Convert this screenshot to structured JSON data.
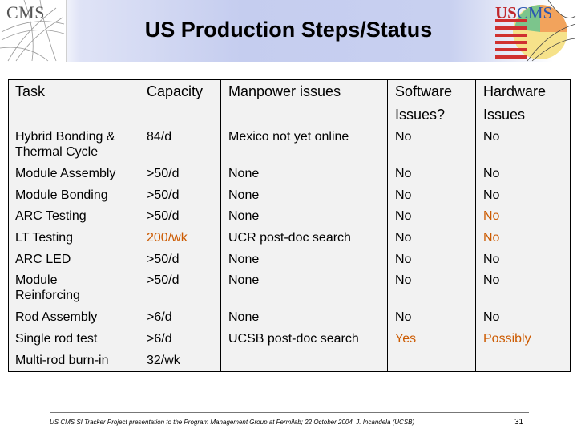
{
  "header": {
    "title": "US Production Steps/Status",
    "left_logo": "CMS",
    "right_logo_us": "US",
    "right_logo_cms": "CMS"
  },
  "table": {
    "columns": [
      "Task",
      "Capacity",
      "Manpower issues",
      "Software Issues?",
      "Hardware Issues"
    ],
    "column_lines": [
      [
        "Task"
      ],
      [
        "Capacity"
      ],
      [
        "Manpower issues"
      ],
      [
        "Software",
        "Issues?"
      ],
      [
        "Hardware",
        "Issues"
      ]
    ],
    "rows": [
      {
        "task": [
          "Hybrid Bonding &",
          "Thermal Cycle"
        ],
        "capacity": "84/d",
        "manpower": "Mexico not yet online",
        "software": "No",
        "hardware": "No"
      },
      {
        "task": [
          "Module Assembly"
        ],
        "capacity": ">50/d",
        "manpower": "None",
        "software": "No",
        "hardware": "No"
      },
      {
        "task": [
          "Module Bonding"
        ],
        "capacity": ">50/d",
        "manpower": "None",
        "software": "No",
        "hardware": "No"
      },
      {
        "task": [
          "ARC Testing"
        ],
        "capacity": ">50/d",
        "manpower": "None",
        "software": "No",
        "hardware": "No"
      },
      {
        "task": [
          "LT Testing"
        ],
        "capacity": "200/wk",
        "manpower": "UCR post-doc search",
        "software": "No",
        "hardware": "No"
      },
      {
        "task": [
          "ARC LED"
        ],
        "capacity": ">50/d",
        "manpower": "None",
        "software": "No",
        "hardware": "No"
      },
      {
        "task": [
          "Module",
          "Reinforcing"
        ],
        "capacity": ">50/d",
        "manpower": "None",
        "software": "No",
        "hardware": "No"
      },
      {
        "task": [
          "Rod Assembly"
        ],
        "capacity": ">6/d",
        "manpower": "None",
        "software": "No",
        "hardware": "No"
      },
      {
        "task": [
          "Single rod test"
        ],
        "capacity": ">6/d",
        "manpower": "UCSB post-doc search",
        "software": "Yes",
        "hardware": "Possibly"
      },
      {
        "task": [
          "Multi-rod burn-in"
        ],
        "capacity": "32/wk",
        "manpower": "",
        "software": "",
        "hardware": ""
      }
    ]
  },
  "colors": {
    "highlight": "#cc5a00",
    "header_band": "#c5cdef",
    "table_background": "#f2f2f2"
  },
  "footer": {
    "text": "US CMS SI Tracker Project presentation to the Program Management Group at Fermilab;  22 October 2004, J. Incandela (UCSB)",
    "page_number": "31"
  }
}
